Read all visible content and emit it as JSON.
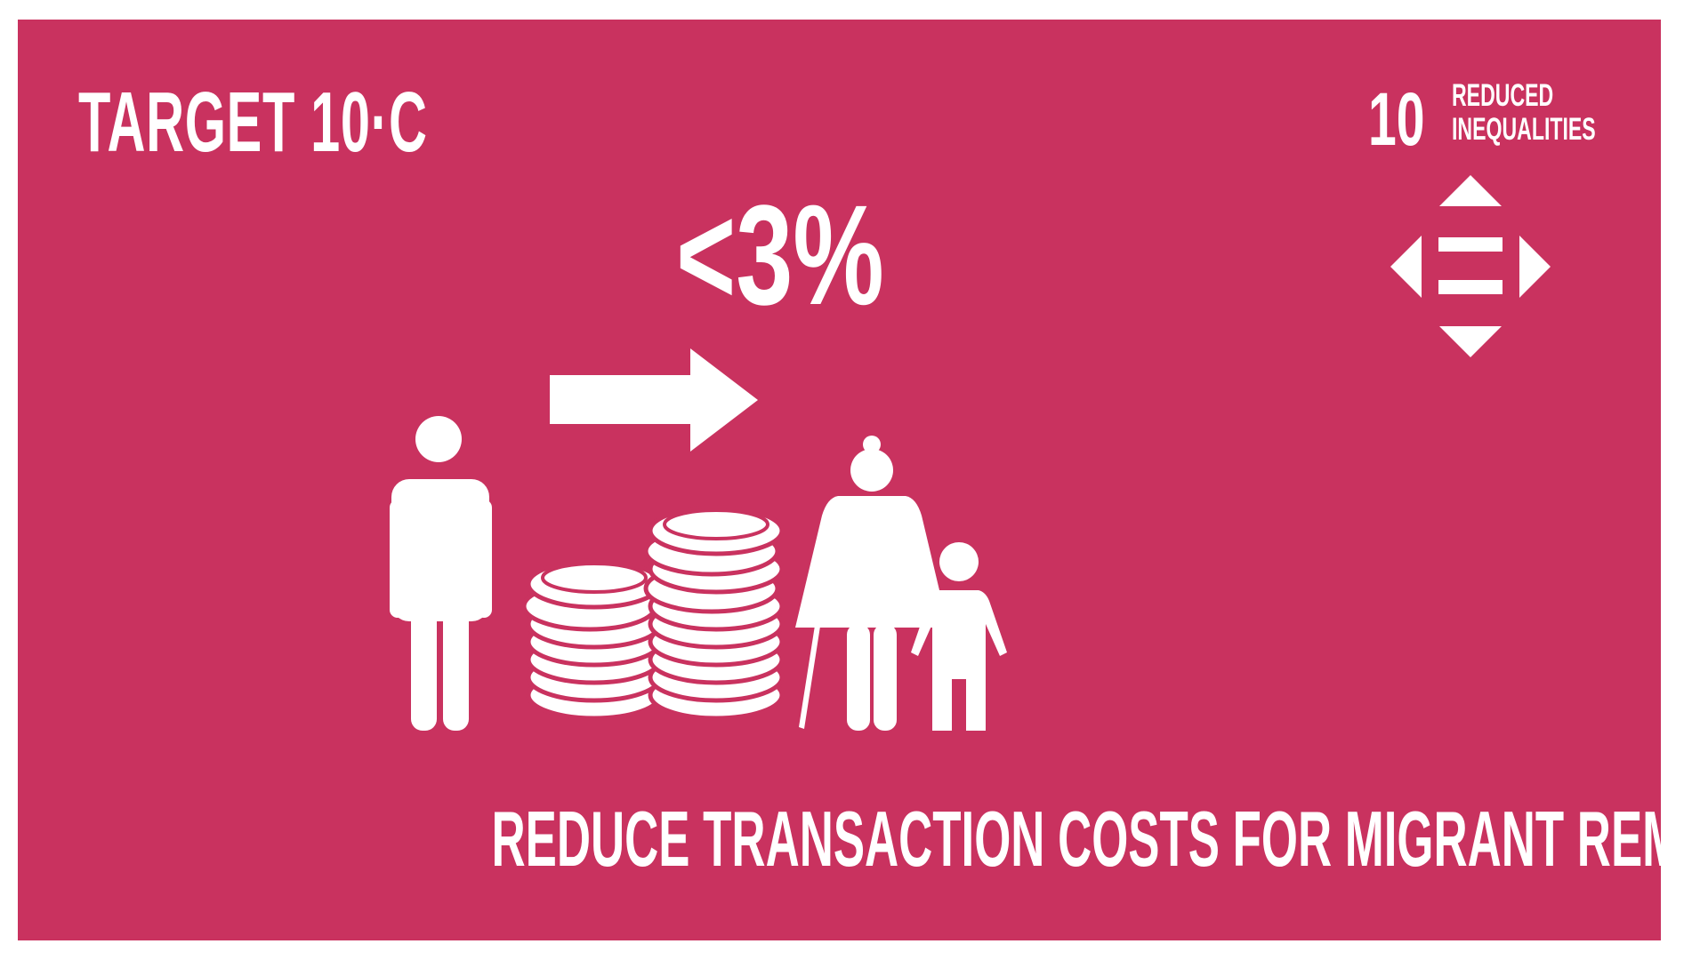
{
  "header": {
    "target_label": "TARGET  10·C"
  },
  "goal": {
    "number": "10",
    "name_line1": "REDUCED",
    "name_line2": "INEQUALITIES",
    "icon": "equality-arrows-icon"
  },
  "main": {
    "value": "<3%",
    "arrow_icon": "right-arrow-icon"
  },
  "caption": "REDUCE TRANSACTION COSTS FOR MIGRANT REMITTANCES",
  "icons": [
    "man-icon",
    "coin-stack-small-icon",
    "coin-stack-large-icon",
    "grandmother-with-cane-icon",
    "child-icon"
  ],
  "colors": {
    "background": "#c9325f",
    "foreground": "#ffffff",
    "page": "#ffffff"
  }
}
